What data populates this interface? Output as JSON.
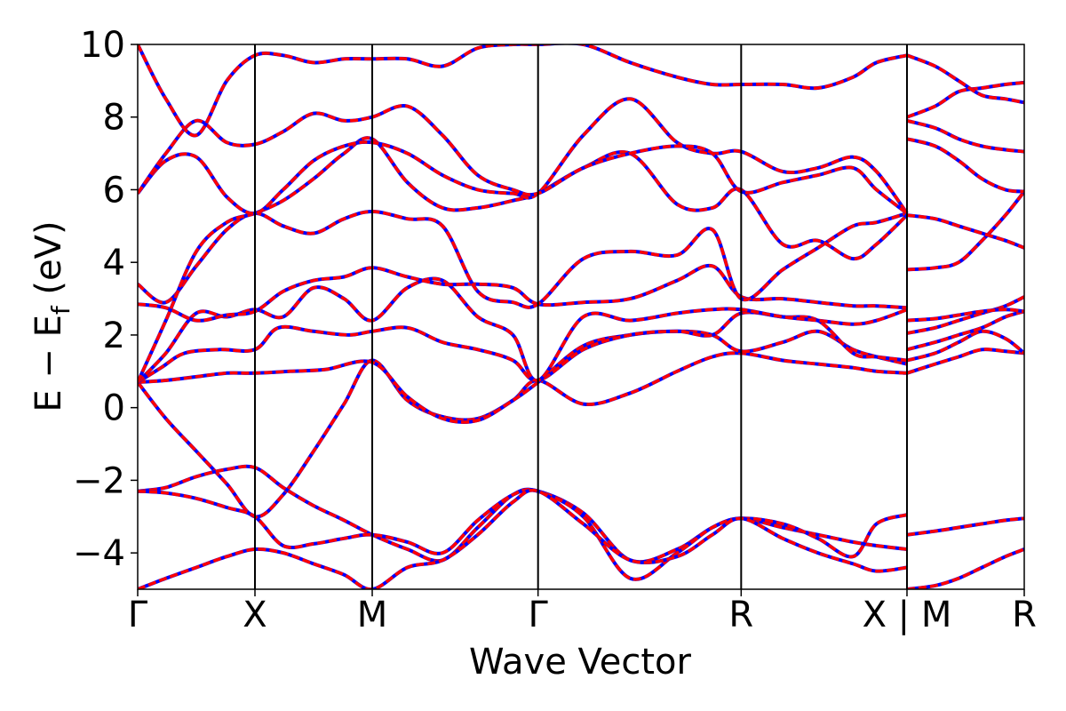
{
  "chart_data": {
    "type": "line",
    "title": "",
    "xlabel": "Wave Vector",
    "ylabel": "E − E",
    "ylabel_sub": "f",
    "ylabel_unit": " (eV)",
    "ylim": [
      -5,
      10
    ],
    "y_ticks": [
      "10",
      "8",
      "6",
      "4",
      "2",
      "0",
      "−2",
      "−4"
    ],
    "y_tick_values": [
      10,
      8,
      6,
      4,
      2,
      0,
      -2,
      -4
    ],
    "grid": false,
    "legend": "none",
    "colors": {
      "overlay": "#ff0000",
      "base": "#0000ff",
      "divider": "#000000"
    },
    "k_points": [
      {
        "label": "Γ",
        "k": 0
      },
      {
        "label": "X",
        "k": 0.5
      },
      {
        "label": "M",
        "k": 1.0
      },
      {
        "label": "Γ",
        "k": 1.707
      },
      {
        "label": "R",
        "k": 2.573
      },
      {
        "label": "X | M",
        "k": 3.28
      },
      {
        "label": "R",
        "k": 3.78
      }
    ],
    "xlim": [
      0,
      3.78
    ],
    "series": [
      {
        "x": [
          0,
          0.12,
          0.25,
          0.38,
          0.5,
          0.62,
          0.75,
          0.88,
          1.0,
          1.15,
          1.3,
          1.45,
          1.6,
          1.707,
          1.9,
          2.1,
          2.3,
          2.45,
          2.573,
          2.75,
          2.9,
          3.05,
          3.15,
          3.28
        ],
        "y": [
          0.7,
          -0.3,
          -1.2,
          -2.1,
          -3.0,
          -2.4,
          -1.2,
          0.1,
          1.3,
          0.2,
          -0.25,
          -0.3,
          0.2,
          0.75,
          0.1,
          0.4,
          1.0,
          1.4,
          1.5,
          1.3,
          1.2,
          1.1,
          1.0,
          0.95
        ]
      },
      {
        "x": [
          0,
          0.12,
          0.25,
          0.38,
          0.5,
          0.65,
          0.8,
          1.0,
          1.15,
          1.3,
          1.45,
          1.6,
          1.707,
          1.9,
          2.1,
          2.3,
          2.45,
          2.573,
          2.75,
          2.9,
          3.05,
          3.15,
          3.28
        ],
        "y": [
          0.7,
          0.75,
          0.85,
          0.95,
          0.95,
          1.0,
          1.05,
          1.25,
          0.3,
          -0.3,
          -0.35,
          0.2,
          0.7,
          1.7,
          2.0,
          2.1,
          2.0,
          1.55,
          1.8,
          2.1,
          1.6,
          1.4,
          1.2
        ]
      },
      {
        "x": [
          0,
          0.1,
          0.2,
          0.35,
          0.5,
          0.6,
          0.75,
          0.9,
          1.0,
          1.15,
          1.3,
          1.45,
          1.6,
          1.707,
          1.9,
          2.1,
          2.3,
          2.45,
          2.573,
          2.75,
          2.9,
          3.05,
          3.15,
          3.28
        ],
        "y": [
          0.7,
          1.1,
          1.5,
          1.6,
          1.6,
          2.2,
          2.1,
          2.0,
          2.1,
          2.2,
          1.8,
          1.6,
          1.3,
          0.75,
          1.6,
          2.0,
          2.1,
          2.0,
          2.6,
          2.5,
          2.4,
          1.5,
          1.4,
          1.3
        ]
      },
      {
        "x": [
          0,
          0.12,
          0.25,
          0.38,
          0.5,
          0.62,
          0.75,
          0.88,
          1.0,
          1.15,
          1.3,
          1.45,
          1.6,
          1.707,
          1.9,
          2.1,
          2.3,
          2.45,
          2.573,
          2.75,
          2.9,
          3.05,
          3.15,
          3.28
        ],
        "y": [
          0.7,
          1.5,
          2.6,
          2.5,
          2.7,
          2.5,
          3.3,
          3.0,
          2.4,
          3.3,
          3.5,
          2.5,
          2.0,
          0.75,
          2.5,
          2.4,
          2.6,
          2.7,
          2.7,
          2.5,
          2.4,
          2.3,
          2.4,
          2.7
        ]
      },
      {
        "x": [
          0,
          0.12,
          0.25,
          0.38,
          0.5,
          0.62,
          0.75,
          0.88,
          1.0,
          1.15,
          1.3,
          1.45,
          1.6,
          1.707,
          1.9,
          2.1,
          2.3,
          2.45,
          2.573,
          2.75,
          2.9,
          3.05,
          3.15,
          3.28
        ],
        "y": [
          2.85,
          2.75,
          2.4,
          2.55,
          2.65,
          3.2,
          3.5,
          3.6,
          3.85,
          3.6,
          3.4,
          3.4,
          3.3,
          2.85,
          2.9,
          3.0,
          3.5,
          3.9,
          3.05,
          3.0,
          2.9,
          2.8,
          2.8,
          2.75
        ]
      },
      {
        "x": [
          0,
          0.12,
          0.25,
          0.38,
          0.5,
          0.62,
          0.75,
          0.88,
          1.0,
          1.15,
          1.3,
          1.45,
          1.6,
          1.707,
          1.9,
          2.1,
          2.3,
          2.45,
          2.573,
          2.75,
          2.9,
          3.05,
          3.15,
          3.28
        ],
        "y": [
          3.4,
          2.9,
          3.9,
          4.9,
          5.35,
          5.0,
          4.8,
          5.2,
          5.4,
          5.2,
          5.0,
          3.2,
          2.9,
          2.85,
          4.1,
          4.3,
          4.2,
          4.9,
          3.0,
          3.8,
          4.4,
          5.0,
          5.1,
          5.35
        ]
      },
      {
        "x": [
          0,
          0.12,
          0.25,
          0.38,
          0.5,
          0.62,
          0.75,
          0.88,
          1.0,
          1.15,
          1.3,
          1.45,
          1.6,
          1.707,
          1.9,
          2.1,
          2.3,
          2.45,
          2.573,
          2.75,
          2.9,
          3.05,
          3.15,
          3.28
        ],
        "y": [
          0.7,
          2.4,
          4.3,
          5.1,
          5.35,
          5.7,
          6.3,
          7.0,
          7.4,
          6.2,
          5.5,
          5.5,
          5.7,
          5.9,
          6.6,
          7.0,
          5.6,
          5.5,
          6.0,
          4.5,
          4.6,
          4.1,
          4.5,
          5.3
        ]
      },
      {
        "x": [
          0,
          0.12,
          0.25,
          0.38,
          0.5,
          0.62,
          0.75,
          0.88,
          1.0,
          1.15,
          1.3,
          1.45,
          1.6,
          1.707,
          1.9,
          2.1,
          2.3,
          2.45,
          2.573,
          2.75,
          2.9,
          3.05,
          3.15,
          3.28
        ],
        "y": [
          5.9,
          6.8,
          6.9,
          5.8,
          5.35,
          6.0,
          6.8,
          7.2,
          7.3,
          7.0,
          6.4,
          6.0,
          5.9,
          5.9,
          7.5,
          8.5,
          7.3,
          7.0,
          7.05,
          6.5,
          6.6,
          6.9,
          6.5,
          5.35
        ]
      },
      {
        "x": [
          0,
          0.12,
          0.25,
          0.38,
          0.5,
          0.62,
          0.75,
          0.88,
          1.0,
          1.15,
          1.3,
          1.45,
          1.6,
          1.707,
          1.9,
          2.1,
          2.3,
          2.45,
          2.573,
          2.75,
          2.9,
          3.05,
          3.15,
          3.28
        ],
        "y": [
          5.9,
          7.0,
          7.9,
          7.3,
          7.25,
          7.6,
          8.1,
          7.9,
          8.0,
          8.3,
          7.5,
          6.4,
          6.0,
          5.9,
          6.6,
          7.0,
          7.2,
          7.0,
          5.95,
          6.2,
          6.4,
          6.6,
          6.0,
          5.35
        ]
      },
      {
        "x": [
          0,
          0.12,
          0.25,
          0.38,
          0.5,
          0.62,
          0.75,
          0.88,
          1.0,
          1.15,
          1.3,
          1.45,
          1.6,
          1.707,
          1.9,
          2.1,
          2.3,
          2.45,
          2.573,
          2.75,
          2.9,
          3.05,
          3.15,
          3.28
        ],
        "y": [
          10.0,
          8.5,
          7.5,
          9.0,
          9.7,
          9.7,
          9.5,
          9.6,
          9.6,
          9.6,
          9.4,
          9.9,
          10.0,
          10.0,
          10.0,
          9.5,
          9.1,
          8.9,
          8.9,
          8.9,
          8.8,
          9.1,
          9.5,
          9.7
        ]
      },
      {
        "x": [
          0,
          0.12,
          0.25,
          0.38,
          0.5,
          0.62,
          0.75,
          0.88,
          1.0,
          1.15,
          1.3,
          1.45,
          1.6,
          1.707,
          1.9,
          2.1,
          2.3,
          2.45,
          2.573,
          2.75,
          2.9,
          3.05,
          3.15,
          3.28
        ],
        "y": [
          -2.3,
          -2.2,
          -1.9,
          -1.7,
          -1.65,
          -2.2,
          -2.7,
          -3.1,
          -3.5,
          -3.9,
          -4.2,
          -3.3,
          -2.4,
          -2.3,
          -2.9,
          -4.2,
          -3.9,
          -3.3,
          -3.05,
          -3.3,
          -3.5,
          -3.7,
          -3.8,
          -3.9
        ]
      },
      {
        "x": [
          0,
          0.12,
          0.25,
          0.38,
          0.5,
          0.62,
          0.75,
          0.88,
          1.0,
          1.15,
          1.3,
          1.45,
          1.6,
          1.707,
          1.9,
          2.1,
          2.3,
          2.45,
          2.573,
          2.75,
          2.9,
          3.05,
          3.15,
          3.28
        ],
        "y": [
          -2.3,
          -2.35,
          -2.5,
          -2.75,
          -3.0,
          -3.8,
          -3.75,
          -3.6,
          -3.5,
          -3.7,
          -4.0,
          -3.1,
          -2.4,
          -2.3,
          -3.0,
          -4.7,
          -4.0,
          -3.3,
          -3.05,
          -3.2,
          -3.6,
          -4.1,
          -3.2,
          -2.95
        ]
      },
      {
        "x": [
          0,
          0.12,
          0.25,
          0.38,
          0.5,
          0.62,
          0.75,
          0.88,
          1.0,
          1.15,
          1.3,
          1.45,
          1.6,
          1.707,
          1.9,
          2.1,
          2.3,
          2.45,
          2.573,
          2.75,
          2.9,
          3.05,
          3.15,
          3.28
        ],
        "y": [
          -5.0,
          -4.7,
          -4.4,
          -4.1,
          -3.9,
          -4.0,
          -4.3,
          -4.6,
          -5.0,
          -4.4,
          -4.2,
          -3.5,
          -2.6,
          -2.3,
          -3.2,
          -4.2,
          -4.1,
          -3.5,
          -3.05,
          -3.6,
          -4.0,
          -4.3,
          -4.5,
          -4.4
        ]
      },
      {
        "x": [
          3.28,
          3.4,
          3.5,
          3.6,
          3.7,
          3.78
        ],
        "y": [
          0.95,
          1.2,
          1.4,
          1.6,
          1.55,
          1.5
        ]
      },
      {
        "x": [
          3.28,
          3.4,
          3.5,
          3.6,
          3.7,
          3.78
        ],
        "y": [
          1.3,
          1.5,
          1.8,
          2.1,
          1.9,
          1.5
        ]
      },
      {
        "x": [
          3.28,
          3.4,
          3.5,
          3.6,
          3.7,
          3.78
        ],
        "y": [
          1.6,
          1.8,
          2.0,
          2.2,
          2.5,
          2.65
        ]
      },
      {
        "x": [
          3.28,
          3.4,
          3.5,
          3.6,
          3.7,
          3.78
        ],
        "y": [
          2.05,
          2.2,
          2.4,
          2.6,
          2.8,
          3.05
        ]
      },
      {
        "x": [
          3.28,
          3.4,
          3.5,
          3.6,
          3.7,
          3.78
        ],
        "y": [
          2.4,
          2.45,
          2.55,
          2.65,
          2.7,
          2.65
        ]
      },
      {
        "x": [
          3.28,
          3.4,
          3.5,
          3.6,
          3.7,
          3.78
        ],
        "y": [
          3.8,
          3.85,
          4.0,
          4.6,
          5.3,
          5.95
        ]
      },
      {
        "x": [
          3.28,
          3.4,
          3.5,
          3.6,
          3.7,
          3.78
        ],
        "y": [
          5.3,
          5.2,
          5.0,
          4.8,
          4.6,
          4.4
        ]
      },
      {
        "x": [
          3.28,
          3.4,
          3.5,
          3.6,
          3.7,
          3.78
        ],
        "y": [
          7.4,
          7.2,
          6.8,
          6.3,
          6.0,
          5.95
        ]
      },
      {
        "x": [
          3.28,
          3.4,
          3.5,
          3.6,
          3.7,
          3.78
        ],
        "y": [
          7.9,
          7.7,
          7.4,
          7.2,
          7.1,
          7.05
        ]
      },
      {
        "x": [
          3.28,
          3.4,
          3.5,
          3.6,
          3.7,
          3.78
        ],
        "y": [
          8.0,
          8.3,
          8.7,
          8.8,
          8.9,
          8.95
        ]
      },
      {
        "x": [
          3.28,
          3.4,
          3.5,
          3.6,
          3.7,
          3.78
        ],
        "y": [
          9.7,
          9.4,
          9.0,
          8.6,
          8.5,
          8.4
        ]
      },
      {
        "x": [
          3.28,
          3.4,
          3.5,
          3.6,
          3.7,
          3.78
        ],
        "y": [
          -3.5,
          -3.4,
          -3.3,
          -3.2,
          -3.1,
          -3.05
        ]
      },
      {
        "x": [
          3.28,
          3.4,
          3.5,
          3.6,
          3.7,
          3.78
        ],
        "y": [
          -5.0,
          -4.9,
          -4.7,
          -4.4,
          -4.1,
          -3.9
        ]
      }
    ]
  }
}
